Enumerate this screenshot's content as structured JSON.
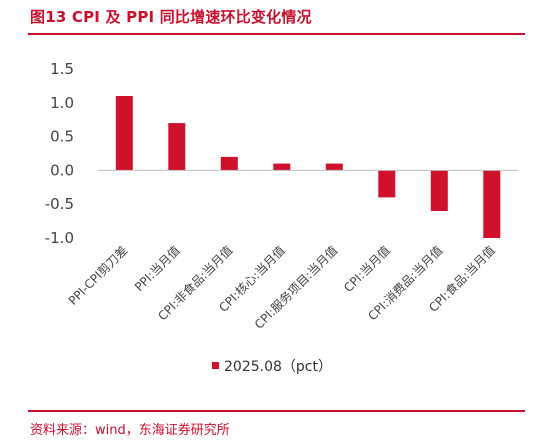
{
  "figure": {
    "title": "图13  CPI 及 PPI 同比增速环比变化情况",
    "source": "资料来源：wind，东海证券研究所"
  },
  "colors": {
    "accent": "#c8102e",
    "bar": "#d0112b",
    "text": "#444444"
  },
  "chart_data": {
    "type": "bar",
    "categories": [
      "PPI-CPI剪刀差",
      "PPI:当月值",
      "CPI:非食品:当月值",
      "CPI:核心:当月值",
      "CPI:服务项目:当月值",
      "CPI:当月值",
      "CPI:消费品:当月值",
      "CPI:食品:当月值"
    ],
    "series": [
      {
        "name": "2025.08（pct）",
        "values": [
          1.1,
          0.7,
          0.2,
          0.1,
          0.1,
          -0.4,
          -0.6,
          -1.0
        ]
      }
    ],
    "yticks": [
      "1.5",
      "1.0",
      "0.5",
      "0.0",
      "-0.5",
      "-1.0"
    ],
    "ylim": [
      -1.0,
      1.5
    ],
    "grid": false,
    "legend_position": "bottom"
  }
}
